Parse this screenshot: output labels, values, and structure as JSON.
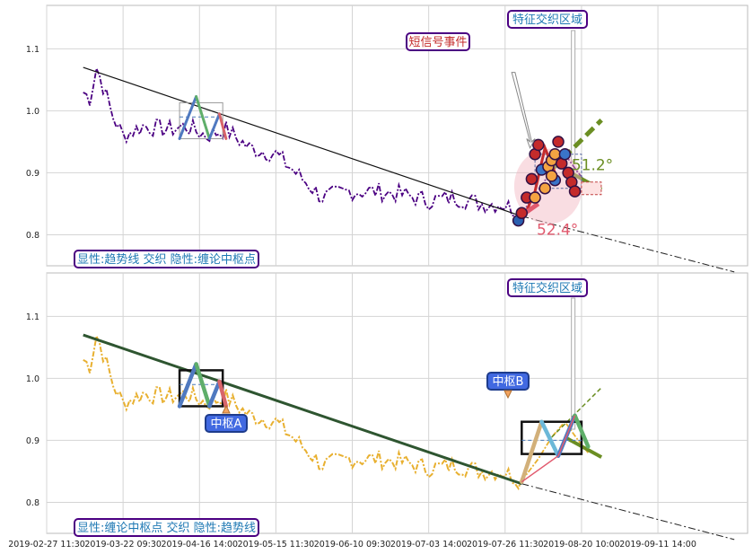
{
  "chart_data": [
    {
      "type": "line",
      "panel": "top",
      "caption": "显性:趋势线 交织 隐性:缠论中枢点",
      "ylim": [
        0.75,
        1.17
      ],
      "yticks": [
        0.8,
        0.9,
        1.0,
        1.1
      ],
      "ytick_labels": [
        "0.8",
        "0.9",
        "1.0",
        "1.1"
      ],
      "grid": true,
      "series_color": "#4b0082",
      "trend_line": [
        [
          0,
          1.07
        ],
        [
          132,
          0.83
        ]
      ],
      "trend_projection": [
        [
          132,
          0.83
        ],
        [
          196,
          0.74
        ]
      ],
      "pivot_zone_a": {
        "x": [
          29,
          42
        ],
        "y": [
          0.955,
          1.013
        ]
      },
      "zigzag_a": [
        [
          29,
          0.955
        ],
        [
          34,
          1.023
        ],
        [
          38,
          0.955
        ],
        [
          41,
          0.995
        ],
        [
          43,
          0.955
        ]
      ],
      "feature_zone": {
        "x": [
          136,
          150
        ],
        "y": [
          0.875,
          0.93
        ]
      },
      "annotations": {
        "short_signal": "短信号事件",
        "feature_zone": "特征交织区域",
        "angle_up": "51.2°",
        "angle_down": "52.4°"
      }
    },
    {
      "type": "line",
      "panel": "bottom",
      "caption": "显性:缠论中枢点 交织 隐性:趋势线",
      "ylim": [
        0.75,
        1.17
      ],
      "yticks": [
        0.8,
        0.9,
        1.0,
        1.1
      ],
      "ytick_labels": [
        "0.8",
        "0.9",
        "1.0",
        "1.1"
      ],
      "grid": true,
      "series_color": "#e8b030",
      "trend_line": [
        [
          0,
          1.07
        ],
        [
          132,
          0.83
        ]
      ],
      "trend_projection": [
        [
          132,
          0.83
        ],
        [
          196,
          0.74
        ]
      ],
      "pivot_zone_a": {
        "x": [
          29,
          42
        ],
        "y": [
          0.955,
          1.013
        ]
      },
      "pivot_zone_b": {
        "x": [
          132,
          150
        ],
        "y": [
          0.878,
          0.93
        ]
      },
      "zigzag_a": [
        [
          29,
          0.955
        ],
        [
          34,
          1.023
        ],
        [
          38,
          0.955
        ],
        [
          41,
          0.995
        ],
        [
          43,
          0.955
        ]
      ],
      "zigzag_b": [
        [
          132,
          0.833
        ],
        [
          138,
          0.93
        ],
        [
          143,
          0.875
        ],
        [
          148,
          0.94
        ],
        [
          152,
          0.89
        ]
      ],
      "annotations": {
        "pivot_a": "中枢A",
        "pivot_b": "中枢B",
        "feature_zone": "特征交织区域"
      }
    }
  ],
  "x_axis": {
    "xlim": [
      -11,
      200
    ],
    "ticks": [
      -11,
      12,
      35,
      58,
      81,
      104,
      127,
      150,
      173
    ],
    "tick_labels": [
      "2019-02-27 11:30",
      "2019-03-22 09:30",
      "2019-04-16 14:00",
      "2019-05-15 11:30",
      "2019-06-10 09:30",
      "2019-07-03 14:00",
      "2019-07-26 11:30",
      "2019-08-20 10:00",
      "2019-09-11 14:00"
    ]
  }
}
